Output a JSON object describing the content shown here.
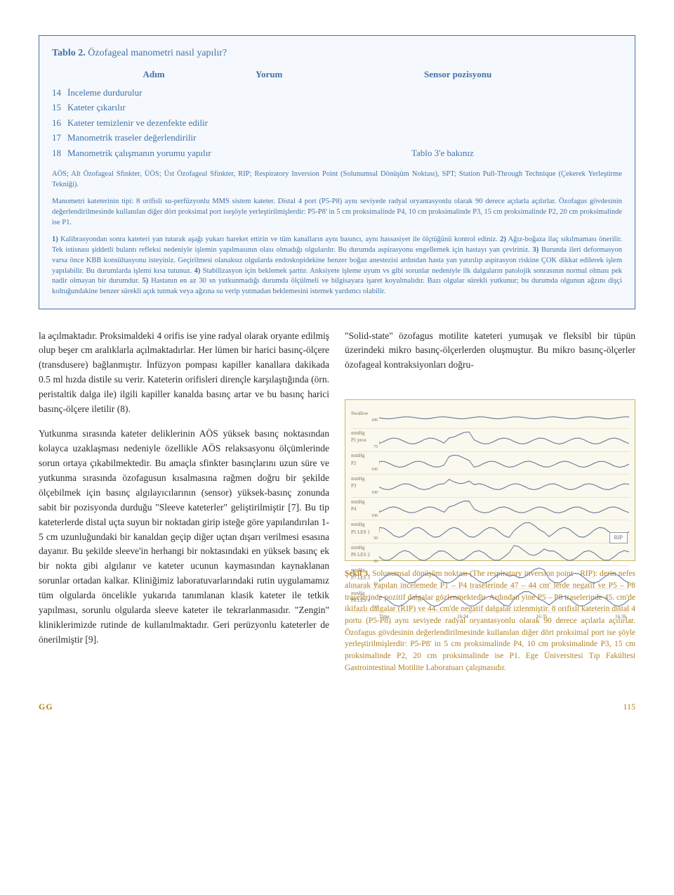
{
  "table": {
    "title_label": "Tablo 2.",
    "title_text": "Özofageal manometri nasıl yapılır?",
    "header": {
      "adim": "Adım",
      "yorum": "Yorum",
      "sensor": "Sensor",
      "pozisyonu": "pozisyonu"
    },
    "rows": [
      {
        "num": "14",
        "text": "İnceleme durdurulur",
        "note": ""
      },
      {
        "num": "15",
        "text": "Kateter çıkarılır",
        "note": ""
      },
      {
        "num": "16",
        "text": "Kateter temizlenir ve dezenfekte edilir",
        "note": ""
      },
      {
        "num": "17",
        "text": "Manometrik traseler değerlendirilir",
        "note": ""
      },
      {
        "num": "18",
        "text": "Manometrik çalışmanın yorumu yapılır",
        "note": "Tablo 3'e bakınız"
      }
    ],
    "abbrev": "AÖS; Alt Özofageal Sfinkter, ÜÖS; Üst Özofageal Sfinkter, RIP; Respiratory Inversion Point (Solunumsal Dönüşüm Noktası), SPT; Station Pull-Through Technique (Çekerek Yerleştirme Tekniği).",
    "para1": "Manometri kateterinin tipi: 8 orifisli su-perfüzyonlu MMS sistem kateter. Distal 4 port (P5-P8) aynı seviyede radyal oryantasyonlu olarak 90 derece açılarla açılırlar. Özofagus gövdesinin değerlendirilmesinde kullanılan diğer dört proksimal port iseşöyle yerleştirilmişlerdir: P5-P8' in 5 cm proksimalinde P4, 10 cm proksimalinde P3, 15 cm proksimalinde P2, 20 cm proksimalinde ise P1.",
    "notes": [
      {
        "b": "1)",
        "t": " Kalibrasyondan sonra kateteri yan tutarak aşağı yukarı hareket ettirin ve tüm kanalların aynı basıncı, aynı hassasiyet ile ölçtüğünü kontrol ediniz. "
      },
      {
        "b": "2)",
        "t": " Ağız-boğaza ilaç sıkılmaması önerilir. Tek istisnası şiddetli bulantı refleksi nedeniyle işlemin yapılmasının olası olmadığı olgulardır. Bu durumda aspirasyonu engellemek için hastayı yan çeviriniz. "
      },
      {
        "b": "3)",
        "t": " Burunda ileri deformasyon varsa önce KBB konsültasyonu isteyiniz. Geçirilmesi olanaksız olgularda endoskopidekine benzer boğaz anestezisi ardından hasta yan yatırılıp aspirasyon riskine ÇOK dikkat edilerek işlem yapılabilir. Bu durumlarda işlemi kısa tutunuz. "
      },
      {
        "b": "4)",
        "t": " Stabilizasyon için beklemek şarttır. Anksiyete işleme uyum vs gibi sorunlar nedeniyle ilk dalgaların patolojik sonrasının normal olması pek nadir olmayan bir durumdur. "
      },
      {
        "b": "5)",
        "t": " Hastanın en az 30 sn yutkunmadığı durumda ölçülmeli ve bilgisayara işaret koyulmalıdır. Bazı olgular sürekli yutkunur; bu durumda olgunun ağzını dişçi koltuğundakine benzer sürekli açık tutmak veya ağzına su verip yutmadan beklemesini istemek yardımcı olabilir."
      }
    ]
  },
  "left": {
    "p1": "la açılmaktadır. Proksimaldeki 4 orifis ise yine radyal olarak oryante edilmiş olup beşer cm aralıklarla açılmaktadırlar. Her lümen bir harici basınç-ölçere (transdusere) bağlanmıştır. İnfüzyon pompası kapiller kanallara dakikada 0.5 ml hızda distile su verir. Kateterin orifisleri dirençle karşılaştığında (örn. peristaltik dalga ile) ilgili kapiller kanalda basınç artar ve bu basınç harici basınç-ölçere iletilir (8).",
    "p2": "Yutkunma sırasında kateter deliklerinin AÖS yüksek basınç noktasından kolayca uzaklaşması nedeniyle özellikle AÖS relaksasyonu ölçümlerinde sorun ortaya çıkabilmektedir. Bu amaçla sfinkter basınçlarını uzun süre ve yutkunma sırasında özofagusun kısalmasına rağmen doğru bir şekilde ölçebilmek için basınç algılayıcılarının (sensor) yüksek-basınç zonunda sabit bir pozisyonda durduğu \"Sleeve kateterler\" geliştirilmiştir [7]. Bu tip kateterlerde distal uçta suyun bir noktadan girip isteğe göre yapılandırılan 1-5 cm uzunluğundaki bir kanaldan geçip diğer uçtan dışarı verilmesi esasına dayanır. Bu şekilde sleeve'in herhangi bir noktasındaki en yüksek basınç ek bir nokta gibi algılanır ve kateter ucunun kaymasından kaynaklanan sorunlar ortadan kalkar. Kliniğimiz laboratuvarlarındaki rutin uygulamamız tüm olgularda öncelikle yukarıda tanımlanan klasik kateter ile tetkik yapılması, sorunlu olgularda sleeve kateter ile tekrarlanmasıdır. \"Zengin\" kliniklerimizde rutinde de kullanılmaktadır. Geri perüzyonlu kateterler de önerilmiştir [9]."
  },
  "right": {
    "p1": "\"Solid-state\" özofagus motilite kateteri yumuşak ve fleksibl bir tüpün üzerindeki mikro basınç-ölçerlerden oluşmuştur. Bu mikro basınç-ölçerler özofageal kontraksiyonları doğru-"
  },
  "figure": {
    "traces": [
      {
        "label": "Swallow",
        "ymax": "200"
      },
      {
        "label": "mmHg\nP1 prox",
        "ymax": "75"
      },
      {
        "label": "mmHg\nP2",
        "ymax": "100"
      },
      {
        "label": "mmHg\nP3",
        "ymax": "100"
      },
      {
        "label": "mmHg\nP4",
        "ymax": "100"
      },
      {
        "label": "mmHg\nP5 LES 1",
        "ymax": "50"
      },
      {
        "label": "mmHg\nP6 LES 2",
        "ymax": "50"
      },
      {
        "label": "mmHg\nP7 LES 3",
        "ymax": "50"
      },
      {
        "label": "mmHg\nP8 LES 4",
        "ymax": "50"
      }
    ],
    "rip": "RIP",
    "time": {
      "label": "Time",
      "t1": "16:34",
      "t2": "16:35",
      "t3": "16:36"
    },
    "wave_color": "#6b7a99",
    "grid_color": "#e8e3d2",
    "bg_color": "#fbf8ee",
    "border_color": "#c9b864"
  },
  "caption": {
    "label": "Şekil 3.",
    "text": "Solunumsal dönüşüm noktası (The respiratory inversion point - RIP): derin nefes alınarak yapılan incelemede P1 – P4 traselerinde 47 – 44 cm' lerde negatif ve P5 – P8 traselerinde pozitif dalgalar gözlenmektedir. Ardından yine P5 – P8 traselerinde 45. cm'de ikifazlı dalgalar (RIP) ve 44. cm'de negatif dalgalar izlenmiştir. 8 orifisli kateterin distal 4 portu (P5-P8) aynı seviyede radyal oryantasyonlu olarak 90 derece açılarla açılırlar. Özofagus gövdesinin değerlendirilmesinde kullanılan diğer dört proksimal port ise şöyle yerleştirilmişlerdir: P5-P8' in 5 cm proksimalinde P4, 10 cm proksimalinde P3, 15 cm proksimalinde P2, 20 cm proksimalinde ise P1. Ege Üniversitesi Tıp Fakültesi Gastrointestinal Motilite Laboratuarı çalışmasıdır."
  },
  "footer": {
    "gg": "GG",
    "page": "115"
  }
}
